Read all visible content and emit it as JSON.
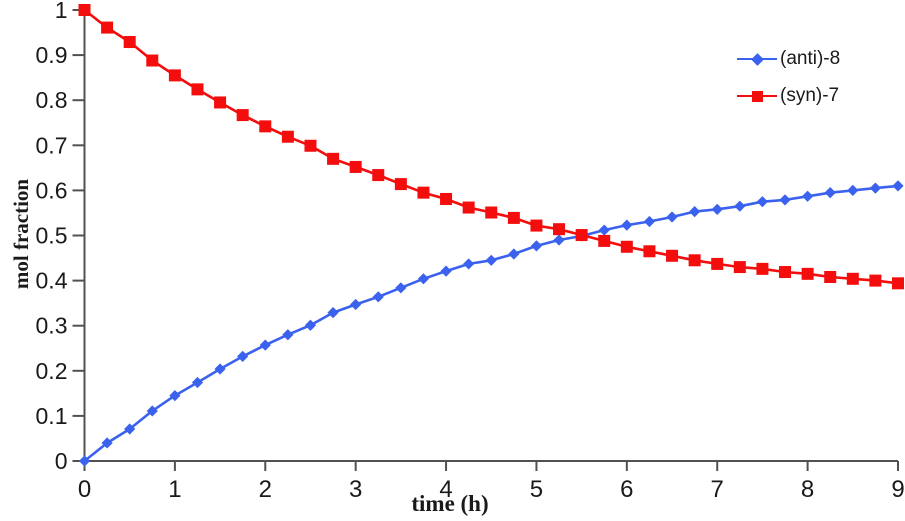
{
  "colors": {
    "anti_blue": "#3b62ee",
    "syn_red": "#f30d0d",
    "axis": "#515151",
    "tick_text": "#1a1a1a",
    "background": "#ffffff"
  },
  "axes": {
    "x_title": "time (h)",
    "y_title": "mol fraction"
  },
  "chart_data": {
    "type": "line",
    "title": "",
    "xlabel": "time (h)",
    "ylabel": "mol fraction",
    "xlim": [
      0,
      9
    ],
    "ylim": [
      0,
      1
    ],
    "grid": false,
    "legend_position": "upper right",
    "x_ticks": [
      0,
      1,
      2,
      3,
      4,
      5,
      6,
      7,
      8,
      9
    ],
    "x_tick_labels": [
      "0",
      "1",
      "2",
      "3",
      "4",
      "5",
      "6",
      "7",
      "8",
      "9"
    ],
    "y_ticks": [
      0,
      0.1,
      0.2,
      0.3,
      0.4,
      0.5,
      0.6,
      0.7,
      0.8,
      0.9,
      1
    ],
    "y_tick_labels": [
      "0",
      "0.1",
      "0.2",
      "0.3",
      "0.4",
      "0.5",
      "0.6",
      "0.7",
      "0.8",
      "0.9",
      "1"
    ],
    "x": [
      0,
      0.25,
      0.5,
      0.75,
      1,
      1.25,
      1.5,
      1.75,
      2,
      2.25,
      2.5,
      2.75,
      3,
      3.25,
      3.5,
      3.75,
      4,
      4.25,
      4.5,
      4.75,
      5,
      5.25,
      5.5,
      5.75,
      6,
      6.25,
      6.5,
      6.75,
      7,
      7.25,
      7.5,
      7.75,
      8,
      8.25,
      8.5,
      8.75,
      9
    ],
    "series": [
      {
        "name": "(anti)-8",
        "color": "#3b62ee",
        "marker": "diamond",
        "values": [
          0,
          0.04,
          0.071,
          0.111,
          0.145,
          0.174,
          0.204,
          0.232,
          0.257,
          0.28,
          0.301,
          0.329,
          0.347,
          0.364,
          0.384,
          0.404,
          0.421,
          0.437,
          0.445,
          0.459,
          0.477,
          0.49,
          0.499,
          0.512,
          0.523,
          0.531,
          0.541,
          0.553,
          0.558,
          0.565,
          0.575,
          0.579,
          0.587,
          0.595,
          0.6,
          0.605,
          0.61
        ]
      },
      {
        "name": "(syn)-7",
        "color": "#f30d0d",
        "marker": "square",
        "values": [
          1,
          0.961,
          0.929,
          0.888,
          0.855,
          0.824,
          0.795,
          0.767,
          0.742,
          0.719,
          0.699,
          0.67,
          0.652,
          0.634,
          0.614,
          0.595,
          0.581,
          0.562,
          0.551,
          0.539,
          0.522,
          0.514,
          0.501,
          0.488,
          0.475,
          0.465,
          0.455,
          0.445,
          0.437,
          0.43,
          0.426,
          0.419,
          0.415,
          0.408,
          0.404,
          0.4,
          0.394
        ]
      }
    ]
  }
}
